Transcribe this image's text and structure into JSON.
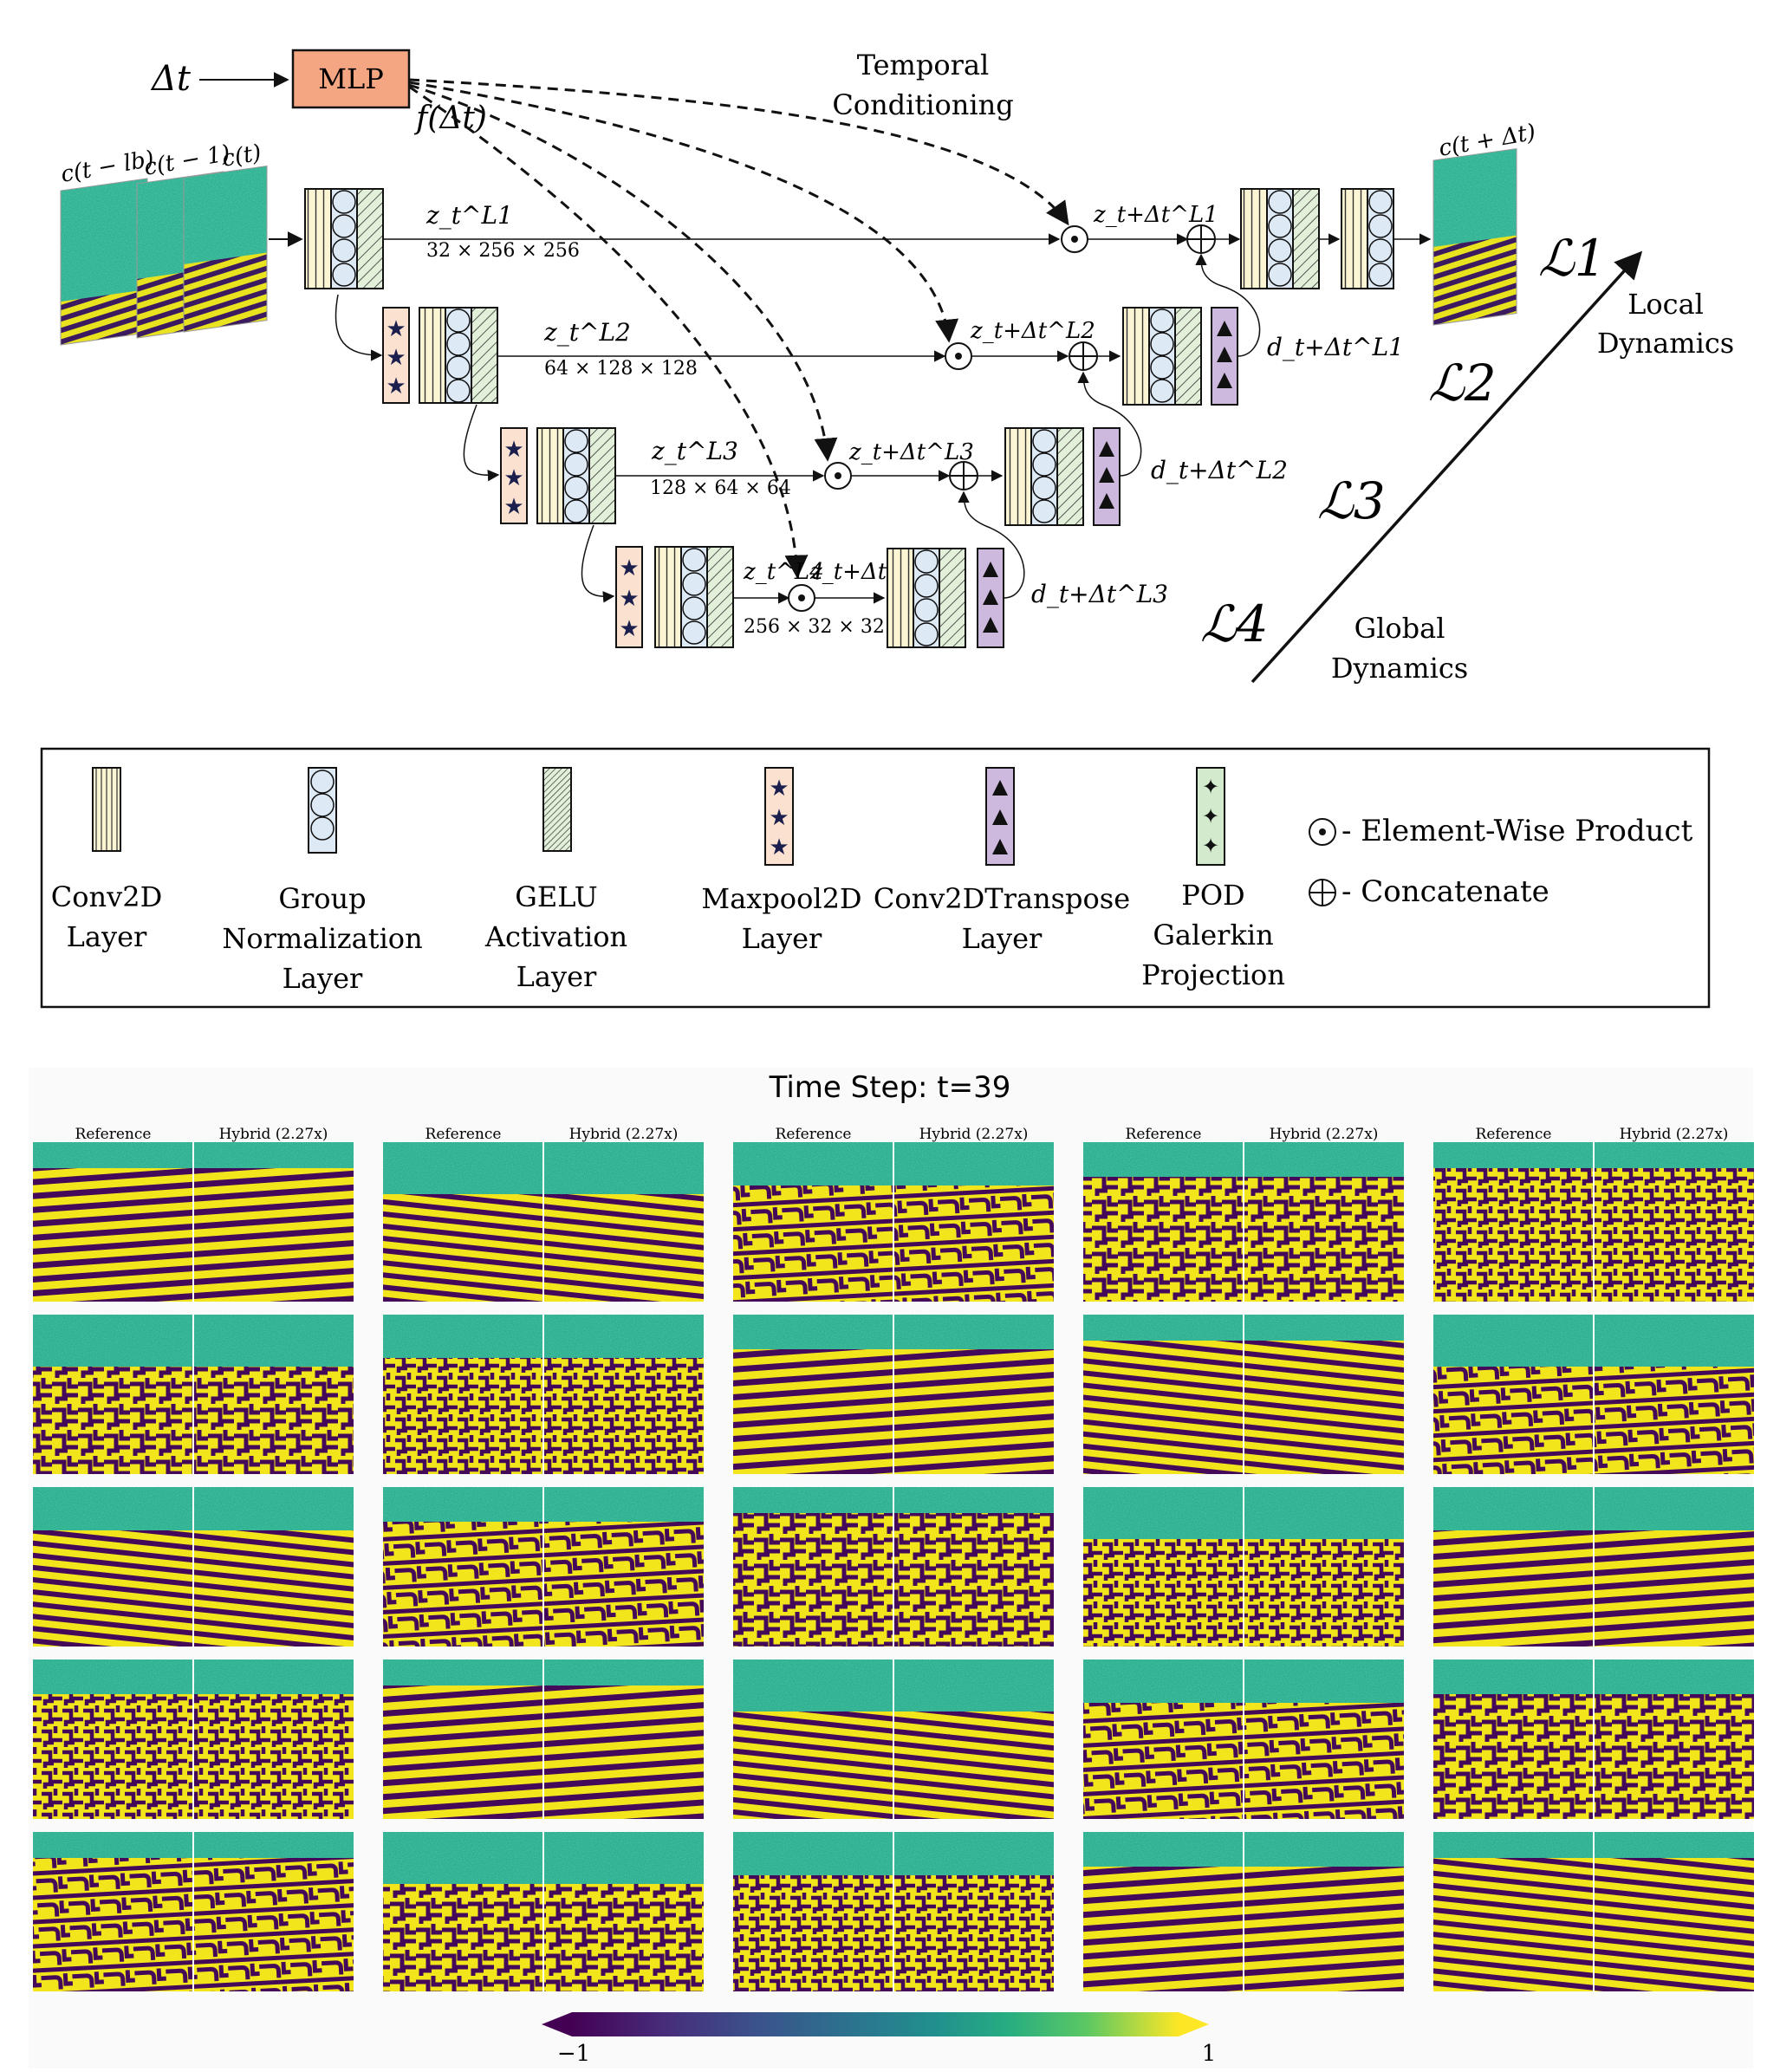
{
  "architecture": {
    "input_symbol": "Δt",
    "mlp_label": "MLP",
    "mlp_output": "f(Δt)",
    "temporal_conditioning": [
      "Temporal",
      "Conditioning"
    ],
    "input_frames": [
      "c(t − lb)",
      "c(t − 1)",
      "c(t)"
    ],
    "output_frame": "c(t + Δt)",
    "encoder_latents": [
      {
        "name": "z_t^L1",
        "shape": "32 × 256 × 256"
      },
      {
        "name": "z_t^L2",
        "shape": "64 × 128 × 128"
      },
      {
        "name": "z_t^L3",
        "shape": "128 × 64 × 64"
      },
      {
        "name": "z_t^L4",
        "shape": "256 × 32 × 32"
      }
    ],
    "conditioned_latents": [
      "z_t+Δt^L1",
      "z_t+Δt^L2",
      "z_t+Δt^L3",
      "z_t+Δt^L4"
    ],
    "decoder_outputs": [
      "d_t+Δt^L1",
      "d_t+Δt^L2",
      "d_t+Δt^L3"
    ],
    "scale_labels": [
      "ℒ1",
      "ℒ2",
      "ℒ3",
      "ℒ4"
    ],
    "local_dynamics": [
      "Local",
      "Dynamics"
    ],
    "global_dynamics": [
      "Global",
      "Dynamics"
    ]
  },
  "legend": {
    "items": [
      {
        "label": [
          "Conv2D",
          "Layer"
        ],
        "pattern": "vertical-lines",
        "color": "#fbf5d4"
      },
      {
        "label": [
          "Group",
          "Normalization",
          "Layer"
        ],
        "pattern": "circles",
        "color": "#dde9f5"
      },
      {
        "label": [
          "GELU",
          "Activation",
          "Layer"
        ],
        "pattern": "diagonal-lines",
        "color": "#e2efd9"
      },
      {
        "label": [
          "Maxpool2D",
          "Layer"
        ],
        "pattern": "stars",
        "color": "#fbe1cf"
      },
      {
        "label": [
          "Conv2DTranspose",
          "Layer"
        ],
        "pattern": "triangles",
        "color": "#cdb8de"
      },
      {
        "label": [
          "POD",
          "Galerkin",
          "Projection"
        ],
        "pattern": "sparkles",
        "color": "#d3ebcc"
      }
    ],
    "ops": [
      {
        "symbol": "⊙",
        "label": "- Element-Wise Product"
      },
      {
        "symbol": "⊕",
        "label": "- Concatenate"
      }
    ]
  },
  "results": {
    "title": "Time Step: t=39",
    "column_headers": [
      "Reference",
      "Hybrid (2.27x)"
    ],
    "grid_rows": 5,
    "grid_cols": 5,
    "colorbar": {
      "min_label": "−1",
      "max_label": "1",
      "min": -1,
      "max": 1
    }
  },
  "colors": {
    "mlp_fill": "#f4a582",
    "pattern_yellow": "#f2e51c",
    "pattern_purple": "#440a59",
    "noise_teal": "#22a884"
  }
}
